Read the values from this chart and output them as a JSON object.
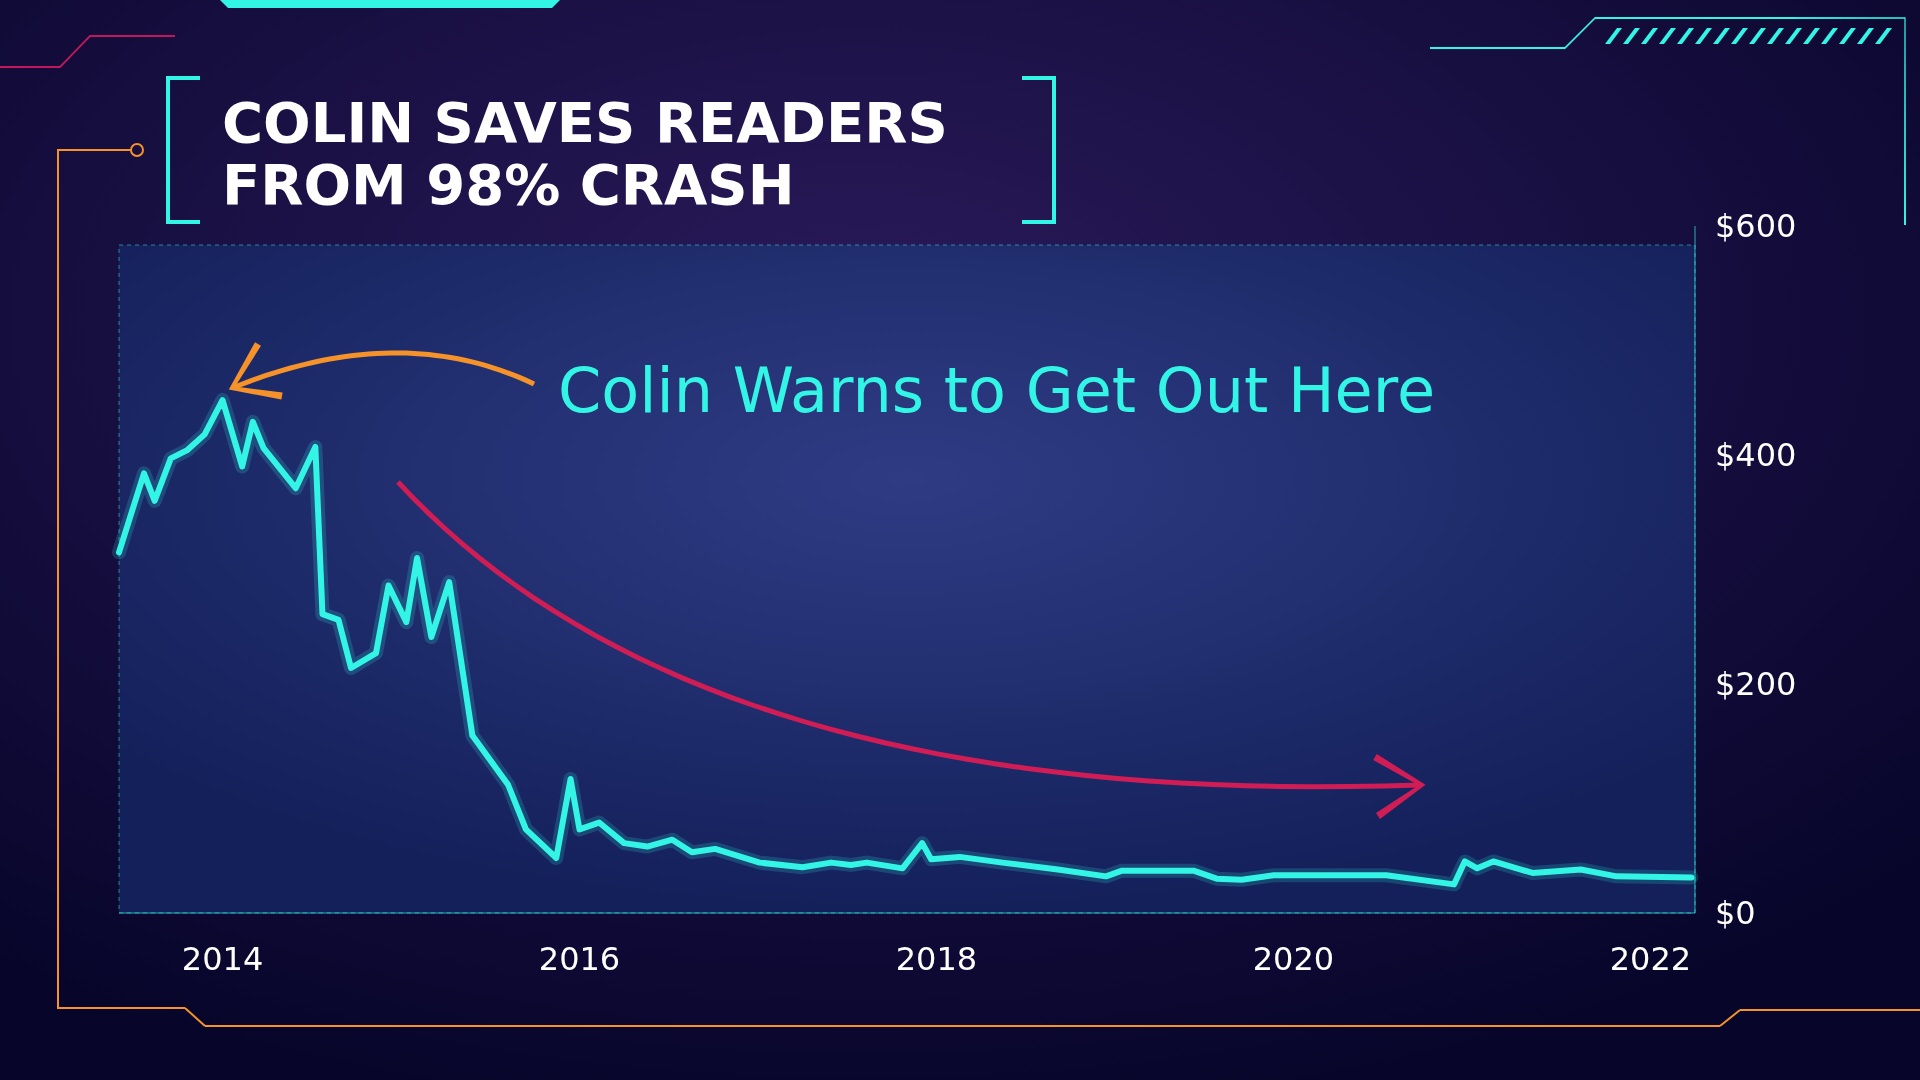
{
  "chart_data": {
    "type": "line",
    "title": "COLIN SAVES READERS FROM 98% CRASH",
    "annotations": [
      "Colin Warns to Get Out Here"
    ],
    "x": [
      2013.42,
      2013.56,
      2013.62,
      2013.71,
      2013.8,
      2013.9,
      2014.0,
      2014.11,
      2014.17,
      2014.23,
      2014.41,
      2014.52,
      2014.56,
      2014.65,
      2014.72,
      2014.86,
      2014.93,
      2015.03,
      2015.09,
      2015.17,
      2015.27,
      2015.4,
      2015.6,
      2015.7,
      2015.87,
      2015.95,
      2016.0,
      2016.11,
      2016.25,
      2016.38,
      2016.52,
      2016.63,
      2016.76,
      2017.01,
      2017.25,
      2017.41,
      2017.52,
      2017.61,
      2017.81,
      2017.92,
      2017.97,
      2018.13,
      2018.37,
      2018.68,
      2018.95,
      2019.04,
      2019.44,
      2019.57,
      2019.71,
      2019.89,
      2020.52,
      2020.9,
      2020.96,
      2021.03,
      2021.12,
      2021.34,
      2021.61,
      2021.81,
      2022.23
    ],
    "series": [
      {
        "color": "#33f5e6",
        "values": [
          315,
          384,
          360,
          397,
          404,
          418,
          448,
          390,
          429,
          406,
          371,
          407,
          261,
          256,
          214,
          227,
          286,
          254,
          310,
          241,
          289,
          155,
          112,
          73,
          48,
          117,
          73,
          79,
          61,
          58,
          64,
          53,
          56,
          44,
          40,
          44,
          42,
          44,
          39,
          61,
          47,
          49,
          44,
          38,
          32,
          37,
          37,
          30,
          29,
          33,
          33,
          25,
          45,
          39,
          45,
          35,
          38,
          32,
          31
        ]
      }
    ],
    "xlim": [
      2013.42,
      2022.25
    ],
    "xticks": [
      2014,
      2016,
      2018,
      2020,
      2022
    ],
    "ylim": [
      0,
      600
    ],
    "yticks": [
      {
        "value": 0,
        "label": "$0"
      },
      {
        "value": 200,
        "label": "$200"
      },
      {
        "value": 400,
        "label": "$400"
      },
      {
        "value": 600,
        "label": "$600"
      }
    ],
    "line_style": "solid",
    "marker": "none"
  }
}
